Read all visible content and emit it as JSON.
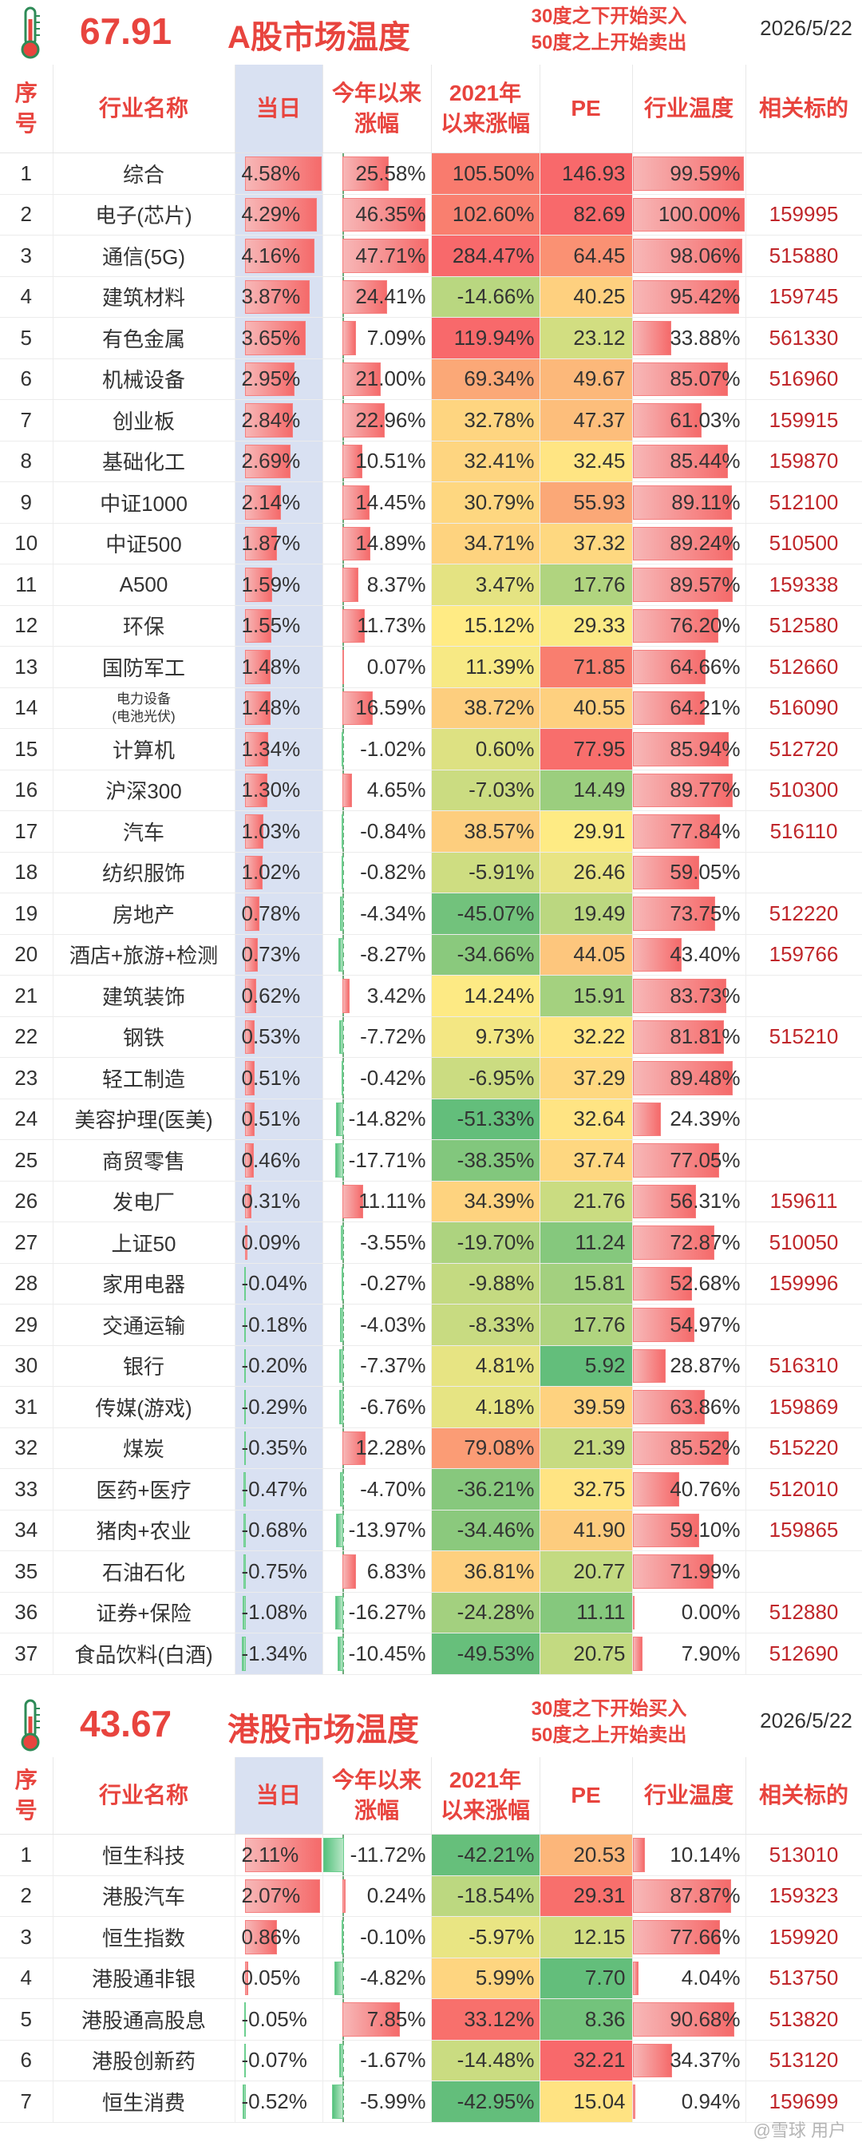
{
  "a_share": {
    "temperature": "67.91",
    "title": "A股市场温度",
    "rule_line1": "30度之下开始买入",
    "rule_line2": "50度之上开始卖出",
    "date": "2026/5/22",
    "headers": [
      "序号",
      "行业名称",
      "当日",
      "今年以来涨幅",
      "2021年以来涨幅",
      "PE",
      "行业温度",
      "相关标的"
    ],
    "header_lines": [
      [
        "序",
        "号"
      ],
      [
        "行业名称"
      ],
      [
        "当日"
      ],
      [
        "今年以来",
        "涨幅"
      ],
      [
        "2021年",
        "以来涨幅"
      ],
      [
        "PE"
      ],
      [
        "行业温度"
      ],
      [
        "相关标的"
      ]
    ],
    "rows": [
      {
        "no": "1",
        "name": "综合",
        "day": 4.58,
        "ytd": 25.58,
        "since2021": 105.5,
        "pe": 146.93,
        "temp": 99.59,
        "code": ""
      },
      {
        "no": "2",
        "name": "电子(芯片)",
        "day": 4.29,
        "ytd": 46.35,
        "since2021": 102.6,
        "pe": 82.69,
        "temp": 100.0,
        "code": "159995"
      },
      {
        "no": "3",
        "name": "通信(5G)",
        "day": 4.16,
        "ytd": 47.71,
        "since2021": 284.47,
        "pe": 64.45,
        "temp": 98.06,
        "code": "515880"
      },
      {
        "no": "4",
        "name": "建筑材料",
        "day": 3.87,
        "ytd": 24.41,
        "since2021": -14.66,
        "pe": 40.25,
        "temp": 95.42,
        "code": "159745"
      },
      {
        "no": "5",
        "name": "有色金属",
        "day": 3.65,
        "ytd": 7.09,
        "since2021": 119.94,
        "pe": 23.12,
        "temp": 33.88,
        "code": "561330"
      },
      {
        "no": "6",
        "name": "机械设备",
        "day": 2.95,
        "ytd": 21.0,
        "since2021": 69.34,
        "pe": 49.67,
        "temp": 85.07,
        "code": "516960"
      },
      {
        "no": "7",
        "name": "创业板",
        "day": 2.84,
        "ytd": 22.96,
        "since2021": 32.78,
        "pe": 47.37,
        "temp": 61.03,
        "code": "159915"
      },
      {
        "no": "8",
        "name": "基础化工",
        "day": 2.69,
        "ytd": 10.51,
        "since2021": 32.41,
        "pe": 32.45,
        "temp": 85.44,
        "code": "159870"
      },
      {
        "no": "9",
        "name": "中证1000",
        "day": 2.14,
        "ytd": 14.45,
        "since2021": 30.79,
        "pe": 55.93,
        "temp": 89.11,
        "code": "512100"
      },
      {
        "no": "10",
        "name": "中证500",
        "day": 1.87,
        "ytd": 14.89,
        "since2021": 34.71,
        "pe": 37.32,
        "temp": 89.24,
        "code": "510500"
      },
      {
        "no": "11",
        "name": "A500",
        "day": 1.59,
        "ytd": 8.37,
        "since2021": 3.47,
        "pe": 17.76,
        "temp": 89.57,
        "code": "159338"
      },
      {
        "no": "12",
        "name": "环保",
        "day": 1.55,
        "ytd": 11.73,
        "since2021": 15.12,
        "pe": 29.33,
        "temp": 76.2,
        "code": "512580"
      },
      {
        "no": "13",
        "name": "国防军工",
        "day": 1.48,
        "ytd": 0.07,
        "since2021": 11.39,
        "pe": 71.85,
        "temp": 64.66,
        "code": "512660"
      },
      {
        "no": "14",
        "name": "电力设备",
        "name2": "(电池光伏)",
        "day": 1.48,
        "ytd": 16.59,
        "since2021": 38.72,
        "pe": 40.55,
        "temp": 64.21,
        "code": "516090"
      },
      {
        "no": "15",
        "name": "计算机",
        "day": 1.34,
        "ytd": -1.02,
        "since2021": 0.6,
        "pe": 77.95,
        "temp": 85.94,
        "code": "512720"
      },
      {
        "no": "16",
        "name": "沪深300",
        "day": 1.3,
        "ytd": 4.65,
        "since2021": -7.03,
        "pe": 14.49,
        "temp": 89.77,
        "code": "510300"
      },
      {
        "no": "17",
        "name": "汽车",
        "day": 1.03,
        "ytd": -0.84,
        "since2021": 38.57,
        "pe": 29.91,
        "temp": 77.84,
        "code": "516110"
      },
      {
        "no": "18",
        "name": "纺织服饰",
        "day": 1.02,
        "ytd": -0.82,
        "since2021": -5.91,
        "pe": 26.46,
        "temp": 59.05,
        "code": ""
      },
      {
        "no": "19",
        "name": "房地产",
        "day": 0.78,
        "ytd": -4.34,
        "since2021": -45.07,
        "pe": 19.49,
        "temp": 73.75,
        "code": "512220"
      },
      {
        "no": "20",
        "name": "酒店+旅游+检测",
        "day": 0.73,
        "ytd": -8.27,
        "since2021": -34.66,
        "pe": 44.05,
        "temp": 43.4,
        "code": "159766"
      },
      {
        "no": "21",
        "name": "建筑装饰",
        "day": 0.62,
        "ytd": 3.42,
        "since2021": 14.24,
        "pe": 15.91,
        "temp": 83.73,
        "code": ""
      },
      {
        "no": "22",
        "name": "钢铁",
        "day": 0.53,
        "ytd": -7.72,
        "since2021": 9.73,
        "pe": 32.22,
        "temp": 81.81,
        "code": "515210"
      },
      {
        "no": "23",
        "name": "轻工制造",
        "day": 0.51,
        "ytd": -0.42,
        "since2021": -6.95,
        "pe": 37.29,
        "temp": 89.48,
        "code": ""
      },
      {
        "no": "24",
        "name": "美容护理(医美)",
        "day": 0.51,
        "ytd": -14.82,
        "since2021": -51.33,
        "pe": 32.64,
        "temp": 24.39,
        "code": ""
      },
      {
        "no": "25",
        "name": "商贸零售",
        "day": 0.46,
        "ytd": -17.71,
        "since2021": -38.35,
        "pe": 37.74,
        "temp": 77.05,
        "code": ""
      },
      {
        "no": "26",
        "name": "发电厂",
        "day": 0.31,
        "ytd": 11.11,
        "since2021": 34.39,
        "pe": 21.76,
        "temp": 56.31,
        "code": "159611"
      },
      {
        "no": "27",
        "name": "上证50",
        "day": 0.09,
        "ytd": -3.55,
        "since2021": -19.7,
        "pe": 11.24,
        "temp": 72.87,
        "code": "510050"
      },
      {
        "no": "28",
        "name": "家用电器",
        "day": -0.04,
        "ytd": -0.27,
        "since2021": -9.88,
        "pe": 15.81,
        "temp": 52.68,
        "code": "159996"
      },
      {
        "no": "29",
        "name": "交通运输",
        "day": -0.18,
        "ytd": -4.03,
        "since2021": -8.33,
        "pe": 17.76,
        "temp": 54.97,
        "code": ""
      },
      {
        "no": "30",
        "name": "银行",
        "day": -0.2,
        "ytd": -7.37,
        "since2021": 4.81,
        "pe": 5.92,
        "temp": 28.87,
        "code": "516310"
      },
      {
        "no": "31",
        "name": "传媒(游戏)",
        "day": -0.29,
        "ytd": -6.76,
        "since2021": 4.18,
        "pe": 39.59,
        "temp": 63.86,
        "code": "159869"
      },
      {
        "no": "32",
        "name": "煤炭",
        "day": -0.35,
        "ytd": 12.28,
        "since2021": 79.08,
        "pe": 21.39,
        "temp": 85.52,
        "code": "515220"
      },
      {
        "no": "33",
        "name": "医药+医疗",
        "day": -0.47,
        "ytd": -4.7,
        "since2021": -36.21,
        "pe": 32.75,
        "temp": 40.76,
        "code": "512010"
      },
      {
        "no": "34",
        "name": "猪肉+农业",
        "day": -0.68,
        "ytd": -13.97,
        "since2021": -34.46,
        "pe": 41.9,
        "temp": 59.1,
        "code": "159865"
      },
      {
        "no": "35",
        "name": "石油石化",
        "day": -0.75,
        "ytd": 6.83,
        "since2021": 36.81,
        "pe": 20.77,
        "temp": 71.99,
        "code": ""
      },
      {
        "no": "36",
        "name": "证券+保险",
        "day": -1.08,
        "ytd": -16.27,
        "since2021": -24.28,
        "pe": 11.11,
        "temp": 0.0,
        "code": "512880"
      },
      {
        "no": "37",
        "name": "食品饮料(白酒)",
        "day": -1.34,
        "ytd": -10.45,
        "since2021": -49.53,
        "pe": 20.75,
        "temp": 7.9,
        "code": "512690"
      }
    ]
  },
  "hk_share": {
    "temperature": "43.67",
    "title": "港股市场温度",
    "rule_line1": "30度之下开始买入",
    "rule_line2": "50度之上开始卖出",
    "date": "2026/5/22",
    "header_lines": [
      [
        "序",
        "号"
      ],
      [
        "行业名称"
      ],
      [
        "当日"
      ],
      [
        "今年以来",
        "涨幅"
      ],
      [
        "2021年",
        "以来涨幅"
      ],
      [
        "PE"
      ],
      [
        "行业温度"
      ],
      [
        "相关标的"
      ]
    ],
    "rows": [
      {
        "no": "1",
        "name": "恒生科技",
        "day": 2.11,
        "ytd": -11.72,
        "since2021": -42.21,
        "pe": 20.53,
        "temp": 10.14,
        "code": "513010"
      },
      {
        "no": "2",
        "name": "港股汽车",
        "day": 2.07,
        "ytd": 0.24,
        "since2021": -18.54,
        "pe": 29.31,
        "temp": 87.87,
        "code": "159323"
      },
      {
        "no": "3",
        "name": "恒生指数",
        "day": 0.86,
        "ytd": -0.1,
        "since2021": -5.97,
        "pe": 12.15,
        "temp": 77.66,
        "code": "159920"
      },
      {
        "no": "4",
        "name": "港股通非银",
        "day": 0.05,
        "ytd": -4.82,
        "since2021": 5.99,
        "pe": 7.7,
        "temp": 4.04,
        "code": "513750"
      },
      {
        "no": "5",
        "name": "港股通高股息",
        "day": -0.05,
        "ytd": 7.85,
        "since2021": 33.12,
        "pe": 8.36,
        "temp": 90.68,
        "code": "513820"
      },
      {
        "no": "6",
        "name": "港股创新药",
        "day": -0.07,
        "ytd": -1.67,
        "since2021": -14.48,
        "pe": 32.21,
        "temp": 34.37,
        "code": "513120"
      },
      {
        "no": "7",
        "name": "恒生消费",
        "day": -0.52,
        "ytd": -5.99,
        "since2021": -42.95,
        "pe": 15.04,
        "temp": 0.94,
        "code": "159699"
      }
    ]
  },
  "watermark": "@雪球 用户",
  "colors": {
    "accent": "#e8443e",
    "code": "#c0262a",
    "day_bg": "#d9e1f2"
  }
}
